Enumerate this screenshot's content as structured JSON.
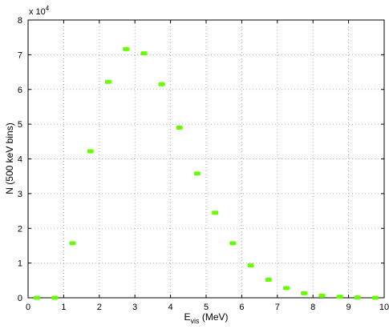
{
  "chart_data": {
    "type": "scatter",
    "xlabel": "E",
    "xlabel_sub": "vis",
    "xlabel_unit": " (MeV)",
    "ylabel": "N (500 keV bins)",
    "y_multiplier_base": "x 10",
    "y_multiplier_exp": "4",
    "xlim": [
      0,
      10
    ],
    "ylim": [
      0,
      80000
    ],
    "x_ticks": [
      0,
      1,
      2,
      3,
      4,
      5,
      6,
      7,
      8,
      9,
      10
    ],
    "y_ticks": [
      0,
      10000,
      20000,
      30000,
      40000,
      50000,
      60000,
      70000,
      80000
    ],
    "y_tick_labels": [
      "0",
      "1",
      "2",
      "3",
      "4",
      "5",
      "6",
      "7",
      "8"
    ],
    "grid": true,
    "marker_color": "#66ff00",
    "series": [
      {
        "x": [
          0.25,
          0.75,
          1.25,
          1.75,
          2.25,
          2.75,
          3.25,
          3.75,
          4.25,
          4.75,
          5.25,
          5.75,
          6.25,
          6.75,
          7.25,
          7.75,
          8.25,
          8.75,
          9.25,
          9.75
        ],
        "y": [
          0,
          0,
          15700,
          42200,
          62200,
          71600,
          70400,
          61500,
          49000,
          35800,
          24500,
          15700,
          9300,
          5200,
          2800,
          1300,
          600,
          300,
          100,
          0
        ]
      }
    ]
  }
}
